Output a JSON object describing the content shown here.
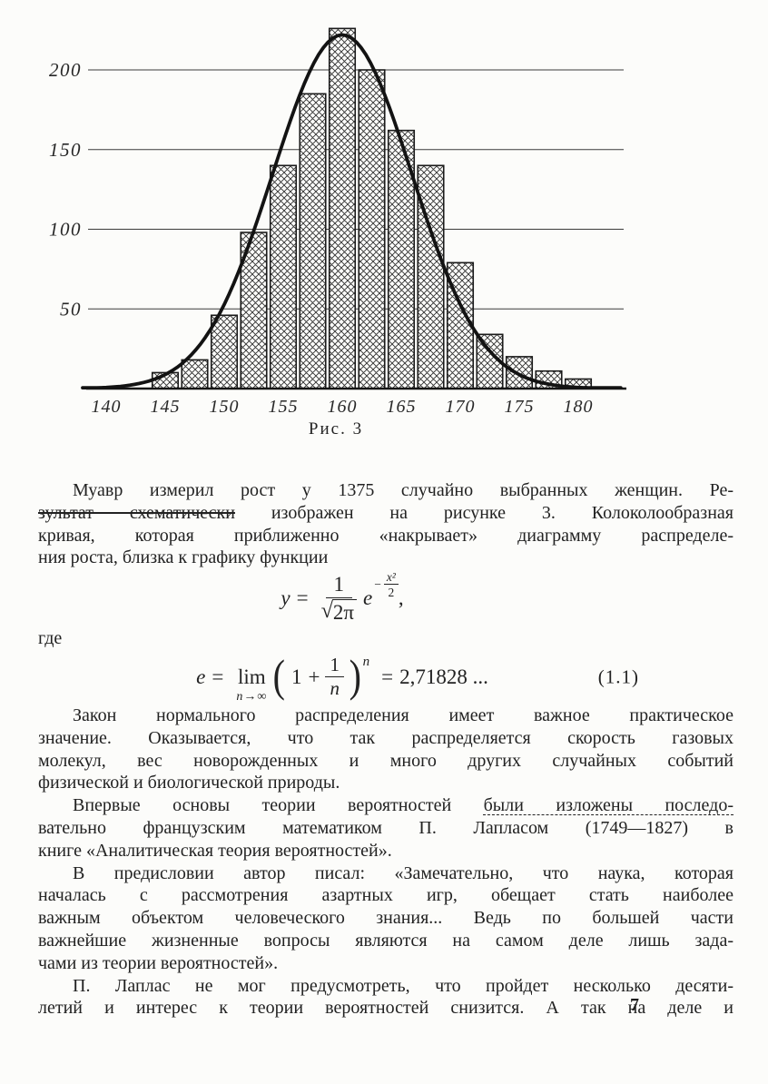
{
  "page": {
    "number": "7",
    "ink_color": "#1f1f1f",
    "paper_color": "#fcfcfa"
  },
  "chart_data": {
    "type": "bar",
    "title": "",
    "caption": "Рис. 3",
    "xlabel": "",
    "ylabel": "",
    "x_ticks": [
      140,
      145,
      150,
      155,
      160,
      165,
      170,
      175,
      180
    ],
    "y_ticks": [
      50,
      100,
      150,
      200
    ],
    "xlim": [
      137.5,
      184
    ],
    "ylim": [
      0,
      240
    ],
    "grid": "horizontal-only",
    "legend": "none",
    "bins": {
      "start": 143.75,
      "width": 2.5
    },
    "values": [
      10,
      18,
      46,
      98,
      140,
      185,
      226,
      200,
      162,
      140,
      79,
      34,
      20,
      11,
      6
    ],
    "curve": {
      "type": "gaussian",
      "mu": 160,
      "sigma": 5.9,
      "peak": 222
    },
    "bar_fill": "crosshatch",
    "ink": "#1b1b1b"
  },
  "text": {
    "where_label": "где",
    "formula1": {
      "lhs": "y",
      "eq": "=",
      "num": "1",
      "rad": "√",
      "radicand": "2π",
      "e": "e",
      "minus": "−",
      "exp_num": "x²",
      "exp_den": "2",
      "comma": ","
    },
    "formula2": {
      "lhs": "e",
      "eq": "=",
      "lim": "lim",
      "limsub": "n→∞",
      "lparen": "(",
      "one": "1",
      "plus": "+",
      "fnum": "1",
      "fden": "n",
      "rparen": ")",
      "power": "n",
      "eq2": "=",
      "value": "2,71828 ...",
      "eqno": "(1.1)"
    },
    "paragraphs": [
      {
        "lines": [
          {
            "segs": [
              {
                "t": "Муавр измерил рост у 1375 случайно выбранных женщин. Ре-"
              }
            ]
          },
          {
            "segs": [
              {
                "t": "зультат схематически",
                "mark": "strike"
              },
              {
                "t": " изображен на рисунке 3. Колоколообразная"
              }
            ]
          },
          {
            "segs": [
              {
                "t": "кривая, которая приближенно «накрывает» диаграмму распределе-"
              }
            ]
          },
          {
            "segs": [
              {
                "t": "ния роста, близка к графику функции"
              }
            ],
            "last": true
          }
        ]
      },
      {
        "lines": [
          {
            "segs": [
              {
                "t": "Закон нормального распределения имеет важное практическое"
              }
            ]
          },
          {
            "segs": [
              {
                "t": "значение. Оказывается, что так распределяется скорость газовых"
              }
            ]
          },
          {
            "segs": [
              {
                "t": "молекул, вес новорожденных и много других случайных событий"
              }
            ]
          },
          {
            "segs": [
              {
                "t": "физической и биологической природы."
              }
            ],
            "last": true
          }
        ]
      },
      {
        "lines": [
          {
            "segs": [
              {
                "t": "Впервые основы теории вероятностей "
              },
              {
                "t": "были изложены последо-",
                "mark": "underline"
              }
            ]
          },
          {
            "segs": [
              {
                "t": "вательно французским математиком П. Лапласом (1749—1827) в"
              }
            ]
          },
          {
            "segs": [
              {
                "t": "книге «Аналитическая теория вероятностей»."
              }
            ],
            "last": true
          }
        ]
      },
      {
        "lines": [
          {
            "segs": [
              {
                "t": "В предисловии автор писал: «Замечательно, что наука, которая"
              }
            ]
          },
          {
            "segs": [
              {
                "t": "началась с рассмотрения азартных игр, обещает стать наиболее"
              }
            ]
          },
          {
            "segs": [
              {
                "t": "важным объектом человеческого знания... Ведь по большей части"
              }
            ]
          },
          {
            "segs": [
              {
                "t": "важнейшие жизненные вопросы являются на самом деле лишь зада-"
              }
            ]
          },
          {
            "segs": [
              {
                "t": "чами из теории вероятностей»."
              }
            ],
            "last": true
          }
        ]
      },
      {
        "lines": [
          {
            "segs": [
              {
                "t": "П. Лаплас не мог предусмотреть, что пройдет несколько десяти-"
              }
            ]
          },
          {
            "segs": [
              {
                "t": "летий и интерес к теории вероятностей снизится. А так на деле и"
              }
            ]
          }
        ]
      }
    ]
  }
}
